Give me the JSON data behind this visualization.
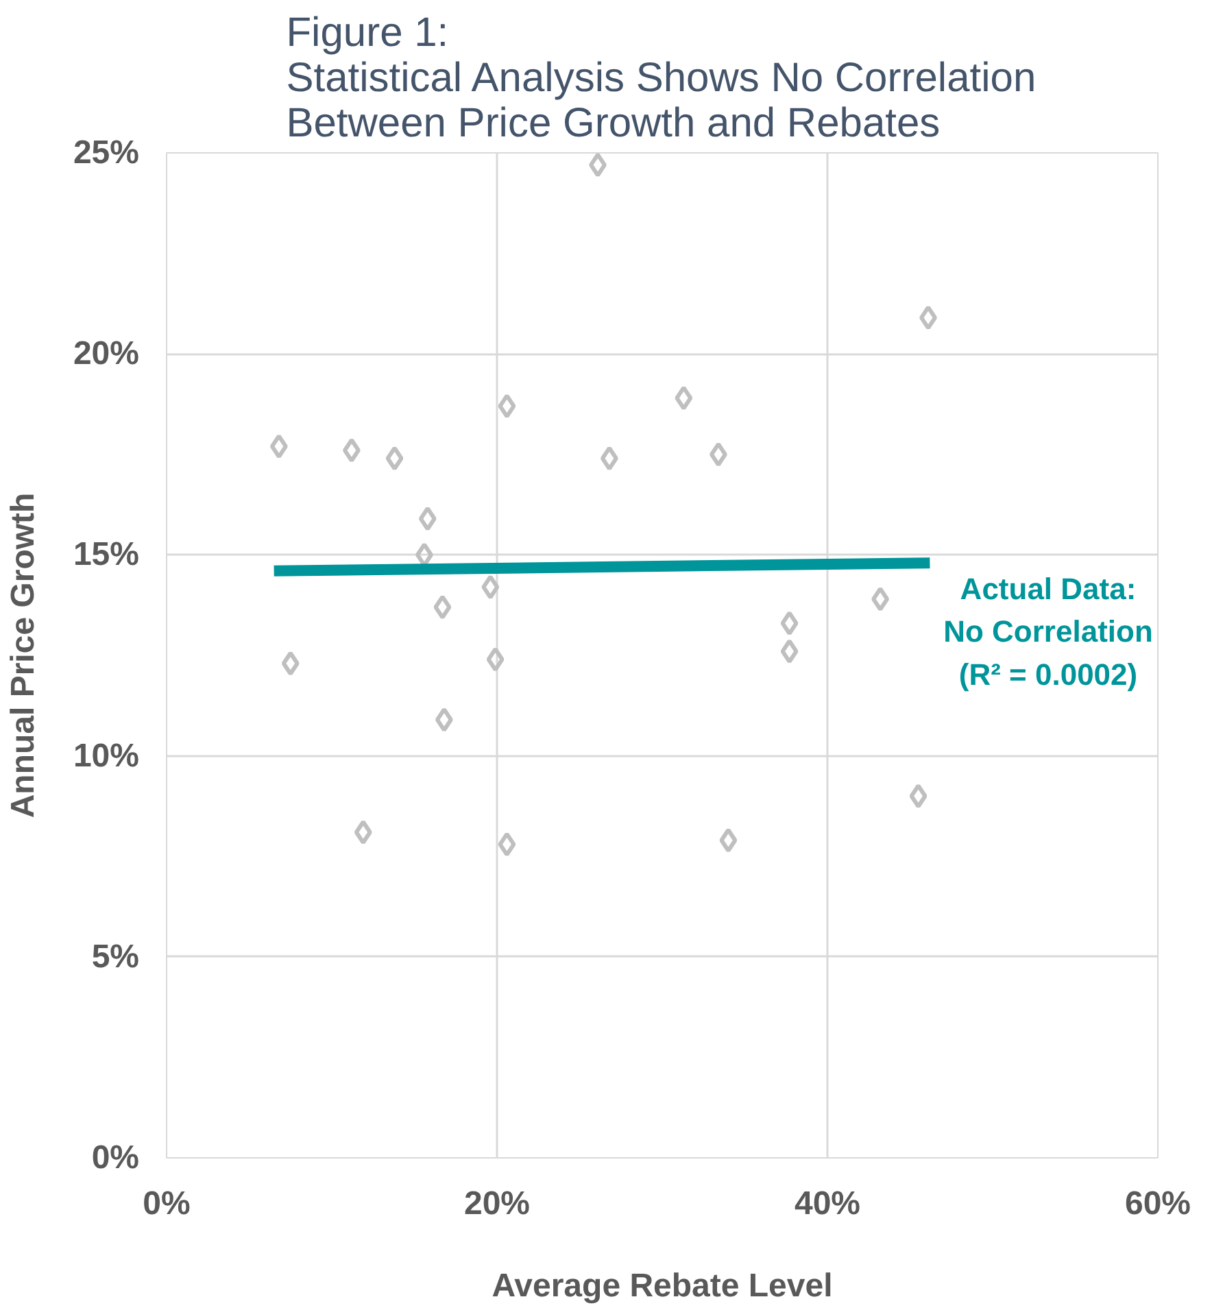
{
  "chart_data": {
    "type": "scatter",
    "title": "Figure 1:\nStatistical Analysis Shows No Correlation\nBetween Price Growth and Rebates",
    "xlabel": "Average Rebate Level",
    "ylabel": "Annual Price Growth",
    "xlim": [
      0,
      60
    ],
    "ylim": [
      0,
      25
    ],
    "xticks": [
      {
        "value": 0,
        "label": "0%"
      },
      {
        "value": 20,
        "label": "20%"
      },
      {
        "value": 40,
        "label": "40%"
      },
      {
        "value": 60,
        "label": "60%"
      }
    ],
    "yticks": [
      {
        "value": 0,
        "label": "0%"
      },
      {
        "value": 5,
        "label": "5%"
      },
      {
        "value": 10,
        "label": "10%"
      },
      {
        "value": 15,
        "label": "15%"
      },
      {
        "value": 20,
        "label": "20%"
      },
      {
        "value": 25,
        "label": "25%"
      }
    ],
    "grid": true,
    "series": [
      {
        "marker": "diamond",
        "color": "#bfbfbf",
        "x": [
          6.8,
          7.5,
          11.2,
          11.9,
          13.8,
          15.8,
          15.6,
          16.7,
          16.8,
          19.6,
          19.9,
          20.6,
          20.6,
          26.1,
          26.8,
          31.3,
          33.4,
          34.0,
          37.7,
          37.7,
          43.2,
          45.5,
          46.1
        ],
        "values": [
          17.7,
          12.3,
          17.6,
          8.1,
          17.4,
          15.9,
          15.0,
          13.7,
          10.9,
          14.2,
          12.4,
          18.7,
          7.8,
          24.7,
          17.4,
          18.9,
          17.5,
          7.9,
          13.3,
          12.6,
          13.9,
          9.0,
          20.9
        ]
      },
      {
        "type": "line",
        "marker": "none",
        "color": "#00959a",
        "x": [
          6.5,
          46.2
        ],
        "values": [
          14.6,
          14.8
        ]
      }
    ],
    "annotations": [
      "Actual Data:\nNo Correlation\n(R² = 0.0002)"
    ]
  }
}
